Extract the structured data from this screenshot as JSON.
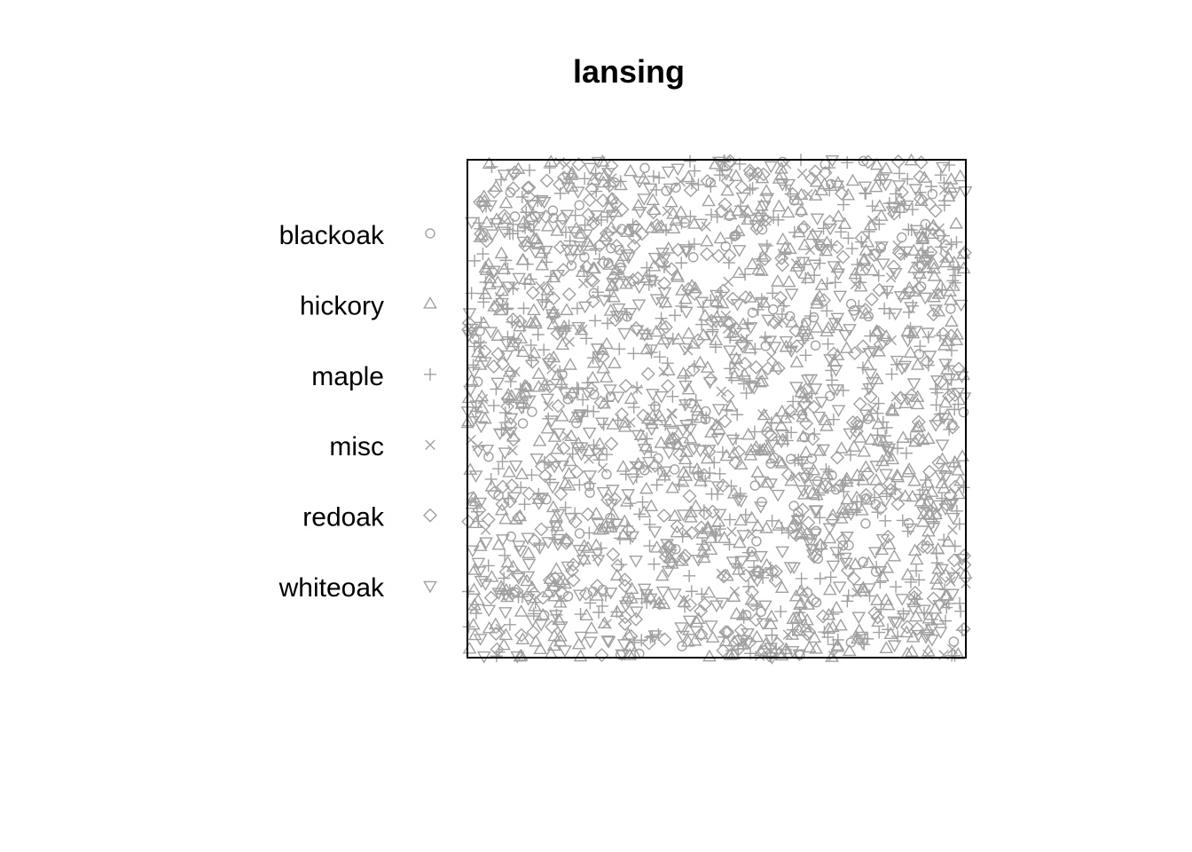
{
  "chart_data": {
    "type": "scatter",
    "title": "lansing",
    "xlabel": "",
    "ylabel": "",
    "xlim": [
      0,
      1
    ],
    "ylim": [
      0,
      1
    ],
    "grid": false,
    "legend_position": "left",
    "point_color": "#a0a0a0",
    "frame_color": "#000000",
    "series": [
      {
        "name": "blackoak",
        "symbol": "circle",
        "count": 135
      },
      {
        "name": "hickory",
        "symbol": "triangle-up",
        "count": 703
      },
      {
        "name": "maple",
        "symbol": "plus",
        "count": 514
      },
      {
        "name": "misc",
        "symbol": "cross",
        "count": 105
      },
      {
        "name": "redoak",
        "symbol": "diamond",
        "count": 346
      },
      {
        "name": "whiteoak",
        "symbol": "triangle-down",
        "count": 448
      }
    ]
  }
}
